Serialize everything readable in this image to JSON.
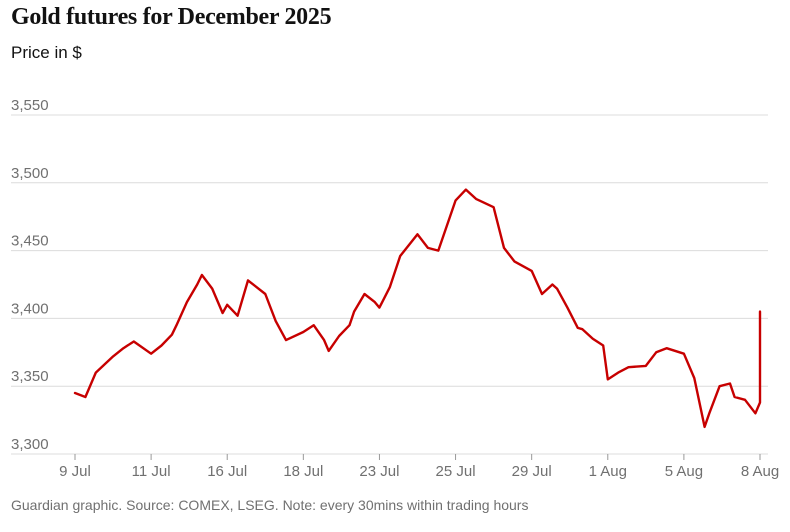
{
  "title": "Gold futures for December 2025",
  "subtitle": "Price in $",
  "footer": "Guardian graphic. Source: COMEX, LSEG. Note: every 30mins within trading hours",
  "colors": {
    "line": "#c70000",
    "grid": "#dcdcdc",
    "tick_text": "#707070",
    "title": "#121212",
    "footer": "#707070"
  },
  "chart_data": {
    "type": "line",
    "title": "Gold futures for December 2025",
    "ylabel": "Price in $",
    "xlabel": "",
    "ylim": [
      3300,
      3550
    ],
    "y_ticks": [
      3300,
      3350,
      3400,
      3450,
      3500,
      3550
    ],
    "y_tick_labels": [
      "3,300",
      "3,350",
      "3,400",
      "3,450",
      "3,500",
      "3,550"
    ],
    "x_ticks": [
      "9 Jul",
      "11 Jul",
      "16 Jul",
      "18 Jul",
      "23 Jul",
      "25 Jul",
      "29 Jul",
      "1 Aug",
      "5 Aug",
      "8 Aug"
    ],
    "grid": "horizontal",
    "series": [
      {
        "x": [
          "9 Jul",
          "9 Jul",
          "9 Jul",
          "10 Jul",
          "10 Jul",
          "10 Jul",
          "11 Jul",
          "11 Jul",
          "11 Jul",
          "14 Jul",
          "14 Jul",
          "14 Jul",
          "15 Jul",
          "15 Jul",
          "15 Jul",
          "16 Jul",
          "16 Jul",
          "16 Jul",
          "17 Jul",
          "17 Jul",
          "17 Jul",
          "18 Jul",
          "18 Jul",
          "18 Jul",
          "21 Jul",
          "21 Jul",
          "21 Jul",
          "22 Jul",
          "22 Jul",
          "22 Jul",
          "23 Jul",
          "23 Jul",
          "23 Jul",
          "24 Jul",
          "24 Jul",
          "24 Jul",
          "25 Jul",
          "25 Jul",
          "25 Jul",
          "28 Jul",
          "28 Jul",
          "28 Jul",
          "29 Jul",
          "29 Jul",
          "29 Jul",
          "30 Jul",
          "30 Jul",
          "30 Jul",
          "31 Jul",
          "31 Jul",
          "31 Jul",
          "1 Aug",
          "1 Aug",
          "1 Aug",
          "4 Aug",
          "4 Aug",
          "4 Aug",
          "5 Aug",
          "5 Aug",
          "5 Aug",
          "6 Aug",
          "6 Aug",
          "6 Aug",
          "7 Aug",
          "7 Aug",
          "7 Aug",
          "8 Aug",
          "8 Aug",
          "8 Aug"
        ],
        "values": [
          3345,
          3342,
          3360,
          3372,
          3378,
          3383,
          3374,
          3380,
          3388,
          3395,
          3412,
          3425,
          3432,
          3422,
          3404,
          3410,
          3402,
          3428,
          3418,
          3398,
          3384,
          3390,
          3395,
          3384,
          3376,
          3387,
          3395,
          3405,
          3418,
          3412,
          3408,
          3423,
          3446,
          3462,
          3452,
          3450,
          3487,
          3495,
          3488,
          3482,
          3452,
          3442,
          3435,
          3418,
          3425,
          3422,
          3408,
          3393,
          3392,
          3385,
          3380,
          3355,
          3360,
          3364,
          3365,
          3375,
          3378,
          3374,
          3356,
          3320,
          3330,
          3350,
          3352,
          3342,
          3340,
          3330,
          3338,
          3400,
          3405
        ]
      }
    ]
  }
}
